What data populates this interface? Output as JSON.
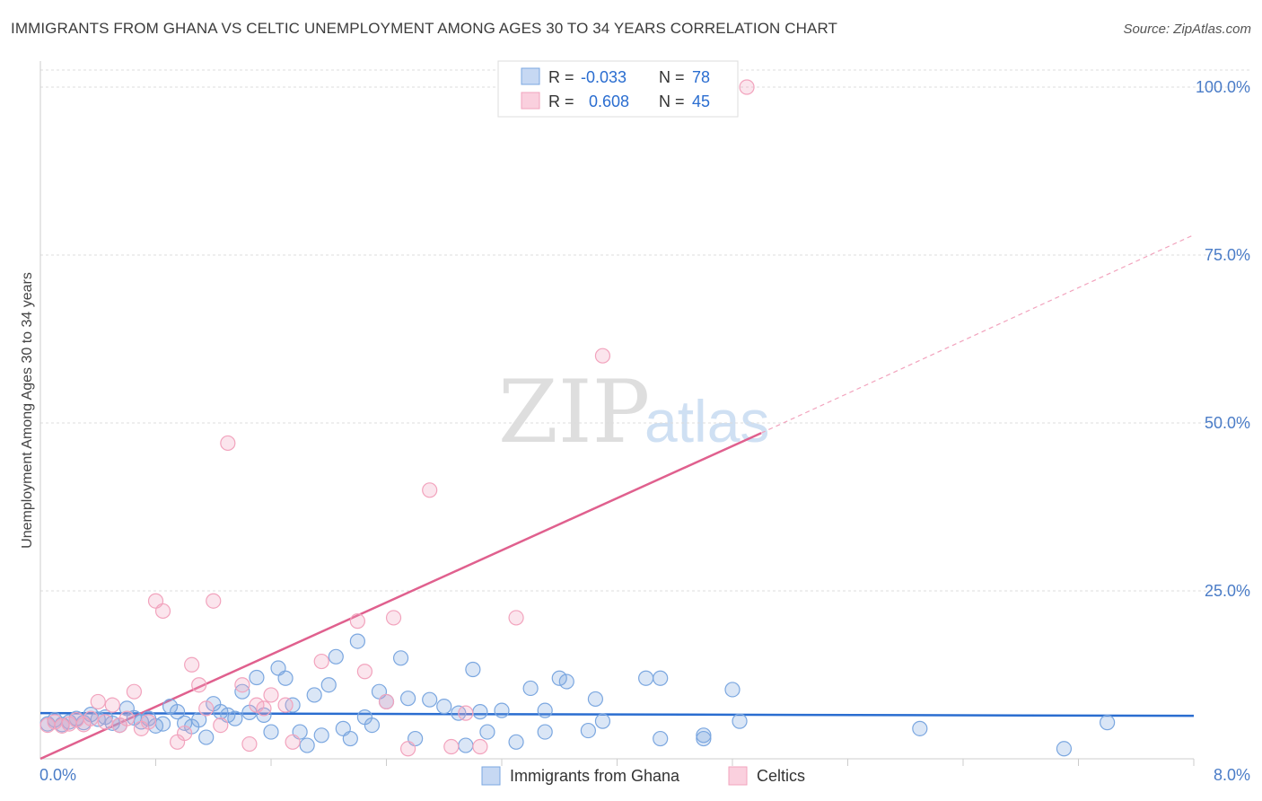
{
  "header": {
    "title": "IMMIGRANTS FROM GHANA VS CELTIC UNEMPLOYMENT AMONG AGES 30 TO 34 YEARS CORRELATION CHART",
    "source": "Source: ZipAtlas.com"
  },
  "watermark": {
    "zip": "ZIP",
    "atlas": "atlas"
  },
  "chart_data": {
    "type": "scatter",
    "title": "IMMIGRANTS FROM GHANA VS CELTIC UNEMPLOYMENT AMONG AGES 30 TO 34 YEARS CORRELATION CHART",
    "xlabel": "",
    "ylabel": "Unemployment Among Ages 30 to 34 years",
    "xlim": [
      0,
      8
    ],
    "ylim": [
      0,
      100
    ],
    "x_tick_labels": [
      "0.0%",
      "8.0%"
    ],
    "y_ticks": [
      25,
      50,
      75,
      100
    ],
    "y_tick_labels": [
      "25.0%",
      "50.0%",
      "75.0%",
      "100.0%"
    ],
    "grid": true,
    "legend_position": "top-center",
    "stats": [
      {
        "r_label": "R =",
        "r_value": "-0.033",
        "n_label": "N =",
        "n_value": "78"
      },
      {
        "r_label": "R =",
        "r_value": "0.608",
        "n_label": "N =",
        "n_value": "45"
      }
    ],
    "series": [
      {
        "name": "Immigrants from Ghana",
        "color": "#7ba7e0",
        "line_color": "#2a6dd0",
        "trend": {
          "x0": 0,
          "y0": 6.8,
          "x1": 8,
          "y1": 6.4
        },
        "points": [
          [
            0.05,
            5.2
          ],
          [
            0.1,
            5.8
          ],
          [
            0.15,
            5.1
          ],
          [
            0.2,
            5.5
          ],
          [
            0.25,
            6.0
          ],
          [
            0.3,
            5.4
          ],
          [
            0.35,
            6.6
          ],
          [
            0.4,
            5.9
          ],
          [
            0.45,
            6.2
          ],
          [
            0.5,
            5.3
          ],
          [
            0.55,
            5.0
          ],
          [
            0.6,
            7.5
          ],
          [
            0.65,
            6.1
          ],
          [
            0.7,
            5.5
          ],
          [
            0.75,
            6.0
          ],
          [
            0.8,
            4.9
          ],
          [
            0.85,
            5.2
          ],
          [
            0.9,
            7.8
          ],
          [
            0.95,
            7.0
          ],
          [
            1.0,
            5.3
          ],
          [
            1.05,
            4.8
          ],
          [
            1.1,
            5.8
          ],
          [
            1.15,
            3.2
          ],
          [
            1.2,
            8.2
          ],
          [
            1.25,
            7.0
          ],
          [
            1.3,
            6.5
          ],
          [
            1.35,
            6.0
          ],
          [
            1.4,
            10.0
          ],
          [
            1.45,
            6.9
          ],
          [
            1.5,
            12.1
          ],
          [
            1.55,
            6.5
          ],
          [
            1.6,
            4.0
          ],
          [
            1.65,
            13.5
          ],
          [
            1.7,
            12.0
          ],
          [
            1.75,
            8.0
          ],
          [
            1.8,
            4.0
          ],
          [
            1.85,
            2.0
          ],
          [
            1.9,
            9.5
          ],
          [
            1.95,
            3.5
          ],
          [
            2.0,
            11.0
          ],
          [
            2.05,
            15.2
          ],
          [
            2.1,
            4.5
          ],
          [
            2.15,
            3.0
          ],
          [
            2.2,
            17.5
          ],
          [
            2.25,
            6.2
          ],
          [
            2.3,
            5.0
          ],
          [
            2.35,
            10.0
          ],
          [
            2.4,
            8.5
          ],
          [
            2.5,
            15.0
          ],
          [
            2.55,
            9.0
          ],
          [
            2.6,
            3.0
          ],
          [
            2.7,
            8.8
          ],
          [
            2.8,
            7.8
          ],
          [
            2.9,
            6.8
          ],
          [
            2.95,
            2.0
          ],
          [
            3.0,
            13.3
          ],
          [
            3.05,
            7.0
          ],
          [
            3.1,
            4.0
          ],
          [
            3.2,
            7.2
          ],
          [
            3.3,
            2.5
          ],
          [
            3.4,
            10.5
          ],
          [
            3.5,
            4.0
          ],
          [
            3.5,
            7.2
          ],
          [
            3.6,
            12.0
          ],
          [
            3.65,
            11.5
          ],
          [
            3.8,
            4.2
          ],
          [
            3.85,
            8.9
          ],
          [
            3.9,
            5.6
          ],
          [
            4.2,
            12.0
          ],
          [
            4.3,
            12.0
          ],
          [
            4.3,
            3.0
          ],
          [
            4.6,
            3.5
          ],
          [
            4.6,
            3.0
          ],
          [
            4.8,
            10.3
          ],
          [
            4.85,
            5.6
          ],
          [
            6.1,
            4.5
          ],
          [
            7.1,
            1.5
          ],
          [
            7.4,
            5.4
          ]
        ]
      },
      {
        "name": "Celtics",
        "color": "#f2a3bd",
        "line_color": "#e0608e",
        "trend": {
          "x0": 0,
          "y0": 0,
          "x1": 5.0,
          "y1": 48.5
        },
        "trend_dashed_to": {
          "x": 8,
          "y": 78
        },
        "points": [
          [
            0.05,
            5.0
          ],
          [
            0.1,
            5.5
          ],
          [
            0.15,
            4.9
          ],
          [
            0.2,
            5.2
          ],
          [
            0.25,
            5.8
          ],
          [
            0.3,
            5.1
          ],
          [
            0.35,
            6.0
          ],
          [
            0.4,
            8.5
          ],
          [
            0.45,
            5.5
          ],
          [
            0.5,
            8.0
          ],
          [
            0.55,
            5.0
          ],
          [
            0.6,
            6.0
          ],
          [
            0.65,
            10.0
          ],
          [
            0.7,
            4.5
          ],
          [
            0.75,
            5.5
          ],
          [
            0.8,
            23.5
          ],
          [
            0.85,
            22.0
          ],
          [
            0.95,
            2.5
          ],
          [
            1.0,
            3.8
          ],
          [
            1.05,
            14.0
          ],
          [
            1.1,
            11.0
          ],
          [
            1.15,
            7.5
          ],
          [
            1.2,
            23.5
          ],
          [
            1.25,
            5.0
          ],
          [
            1.3,
            47.0
          ],
          [
            1.4,
            11.0
          ],
          [
            1.45,
            2.2
          ],
          [
            1.5,
            8.0
          ],
          [
            1.55,
            7.5
          ],
          [
            1.6,
            9.5
          ],
          [
            1.7,
            8.0
          ],
          [
            1.75,
            2.5
          ],
          [
            1.95,
            14.5
          ],
          [
            2.2,
            20.5
          ],
          [
            2.25,
            13.0
          ],
          [
            2.4,
            8.5
          ],
          [
            2.45,
            21.0
          ],
          [
            2.55,
            1.5
          ],
          [
            2.7,
            40.0
          ],
          [
            2.85,
            1.8
          ],
          [
            2.95,
            6.8
          ],
          [
            3.05,
            1.8
          ],
          [
            3.3,
            21.0
          ],
          [
            3.9,
            60.0
          ],
          [
            4.9,
            100.0
          ]
        ]
      }
    ]
  }
}
